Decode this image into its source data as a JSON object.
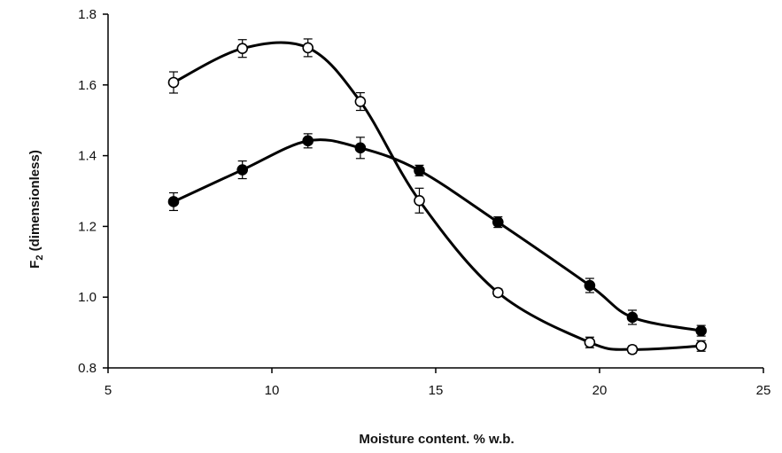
{
  "chart_data": {
    "type": "line",
    "title": "",
    "xlabel": "Moisture content. % w.b.",
    "ylabel": {
      "main": "F",
      "subscript": "2",
      "suffix": " (dimensionless)"
    },
    "xlim": [
      5,
      25
    ],
    "ylim": [
      0.8,
      1.8
    ],
    "xticks": [
      5,
      10,
      15,
      20,
      25
    ],
    "yticks": [
      0.8,
      1.0,
      1.2,
      1.4,
      1.6,
      1.8
    ],
    "ytick_format": "1 decimal",
    "grid": false,
    "legend": "none",
    "smooth": true,
    "series": [
      {
        "marker": "open-circle",
        "color": "#000000",
        "x": [
          7.0,
          9.1,
          11.1,
          12.7,
          14.5,
          16.9,
          19.7,
          21.0,
          23.1
        ],
        "y": [
          1.607,
          1.703,
          1.705,
          1.553,
          1.273,
          1.013,
          0.872,
          0.852,
          0.862
        ],
        "error": [
          0.03,
          0.025,
          0.025,
          0.025,
          0.035,
          0.01,
          0.015,
          0.01,
          0.015
        ]
      },
      {
        "marker": "filled-circle",
        "color": "#000000",
        "x": [
          7.0,
          9.1,
          11.1,
          12.7,
          14.5,
          16.9,
          19.7,
          21.0,
          23.1
        ],
        "y": [
          1.27,
          1.36,
          1.442,
          1.422,
          1.358,
          1.212,
          1.033,
          0.943,
          0.905
        ],
        "error": [
          0.025,
          0.025,
          0.02,
          0.03,
          0.015,
          0.015,
          0.02,
          0.02,
          0.015
        ]
      }
    ]
  }
}
